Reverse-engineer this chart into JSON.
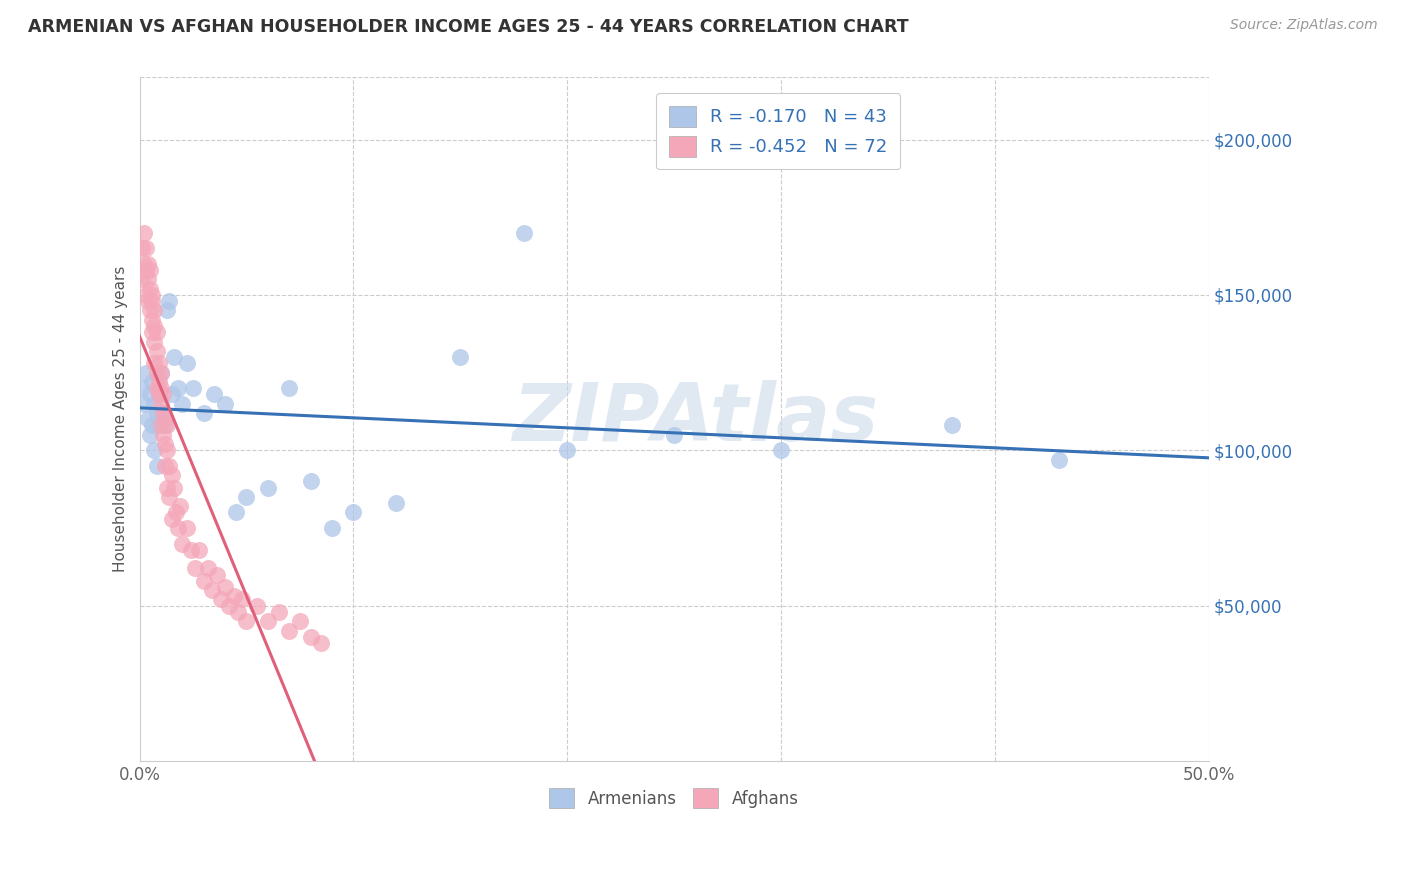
{
  "title": "ARMENIAN VS AFGHAN HOUSEHOLDER INCOME AGES 25 - 44 YEARS CORRELATION CHART",
  "source": "Source: ZipAtlas.com",
  "ylabel": "Householder Income Ages 25 - 44 years",
  "xlim": [
    0.0,
    0.5
  ],
  "ylim": [
    0,
    220000
  ],
  "armenian_color": "#aec6e8",
  "afghan_color": "#f4a7b9",
  "armenian_line_color": "#3671b5",
  "afghan_line_color": "#e0607a",
  "legend_R_armenian": "R = -0.170",
  "legend_N_armenian": "N = 43",
  "legend_R_afghan": "R = -0.452",
  "legend_N_afghan": "N = 72",
  "watermark": "ZIPAtlas",
  "armenian_x": [
    0.001,
    0.002,
    0.003,
    0.004,
    0.005,
    0.005,
    0.006,
    0.006,
    0.007,
    0.007,
    0.008,
    0.008,
    0.009,
    0.009,
    0.01,
    0.011,
    0.012,
    0.013,
    0.014,
    0.015,
    0.016,
    0.018,
    0.02,
    0.022,
    0.025,
    0.03,
    0.035,
    0.04,
    0.045,
    0.05,
    0.06,
    0.07,
    0.08,
    0.09,
    0.1,
    0.12,
    0.15,
    0.18,
    0.2,
    0.25,
    0.3,
    0.38,
    0.43
  ],
  "armenian_y": [
    120000,
    115000,
    125000,
    110000,
    118000,
    105000,
    122000,
    108000,
    115000,
    100000,
    112000,
    95000,
    108000,
    118000,
    125000,
    112000,
    108000,
    145000,
    148000,
    118000,
    130000,
    120000,
    115000,
    128000,
    120000,
    112000,
    118000,
    115000,
    80000,
    85000,
    88000,
    120000,
    90000,
    75000,
    80000,
    83000,
    130000,
    170000,
    100000,
    105000,
    100000,
    108000,
    97000
  ],
  "afghan_x": [
    0.001,
    0.001,
    0.002,
    0.002,
    0.003,
    0.003,
    0.003,
    0.004,
    0.004,
    0.004,
    0.005,
    0.005,
    0.005,
    0.006,
    0.006,
    0.006,
    0.006,
    0.007,
    0.007,
    0.007,
    0.007,
    0.008,
    0.008,
    0.008,
    0.008,
    0.009,
    0.009,
    0.009,
    0.01,
    0.01,
    0.01,
    0.01,
    0.011,
    0.011,
    0.011,
    0.012,
    0.012,
    0.012,
    0.013,
    0.013,
    0.013,
    0.014,
    0.014,
    0.015,
    0.015,
    0.016,
    0.017,
    0.018,
    0.019,
    0.02,
    0.022,
    0.024,
    0.026,
    0.028,
    0.03,
    0.032,
    0.034,
    0.036,
    0.038,
    0.04,
    0.042,
    0.044,
    0.046,
    0.048,
    0.05,
    0.055,
    0.06,
    0.065,
    0.07,
    0.075,
    0.08,
    0.085
  ],
  "afghan_y": [
    155000,
    165000,
    160000,
    170000,
    150000,
    158000,
    165000,
    148000,
    155000,
    160000,
    145000,
    152000,
    158000,
    142000,
    148000,
    138000,
    150000,
    140000,
    145000,
    135000,
    128000,
    132000,
    125000,
    138000,
    120000,
    128000,
    118000,
    122000,
    115000,
    125000,
    108000,
    120000,
    112000,
    105000,
    118000,
    102000,
    110000,
    95000,
    108000,
    100000,
    88000,
    95000,
    85000,
    92000,
    78000,
    88000,
    80000,
    75000,
    82000,
    70000,
    75000,
    68000,
    62000,
    68000,
    58000,
    62000,
    55000,
    60000,
    52000,
    56000,
    50000,
    53000,
    48000,
    52000,
    45000,
    50000,
    45000,
    48000,
    42000,
    45000,
    40000,
    38000
  ]
}
